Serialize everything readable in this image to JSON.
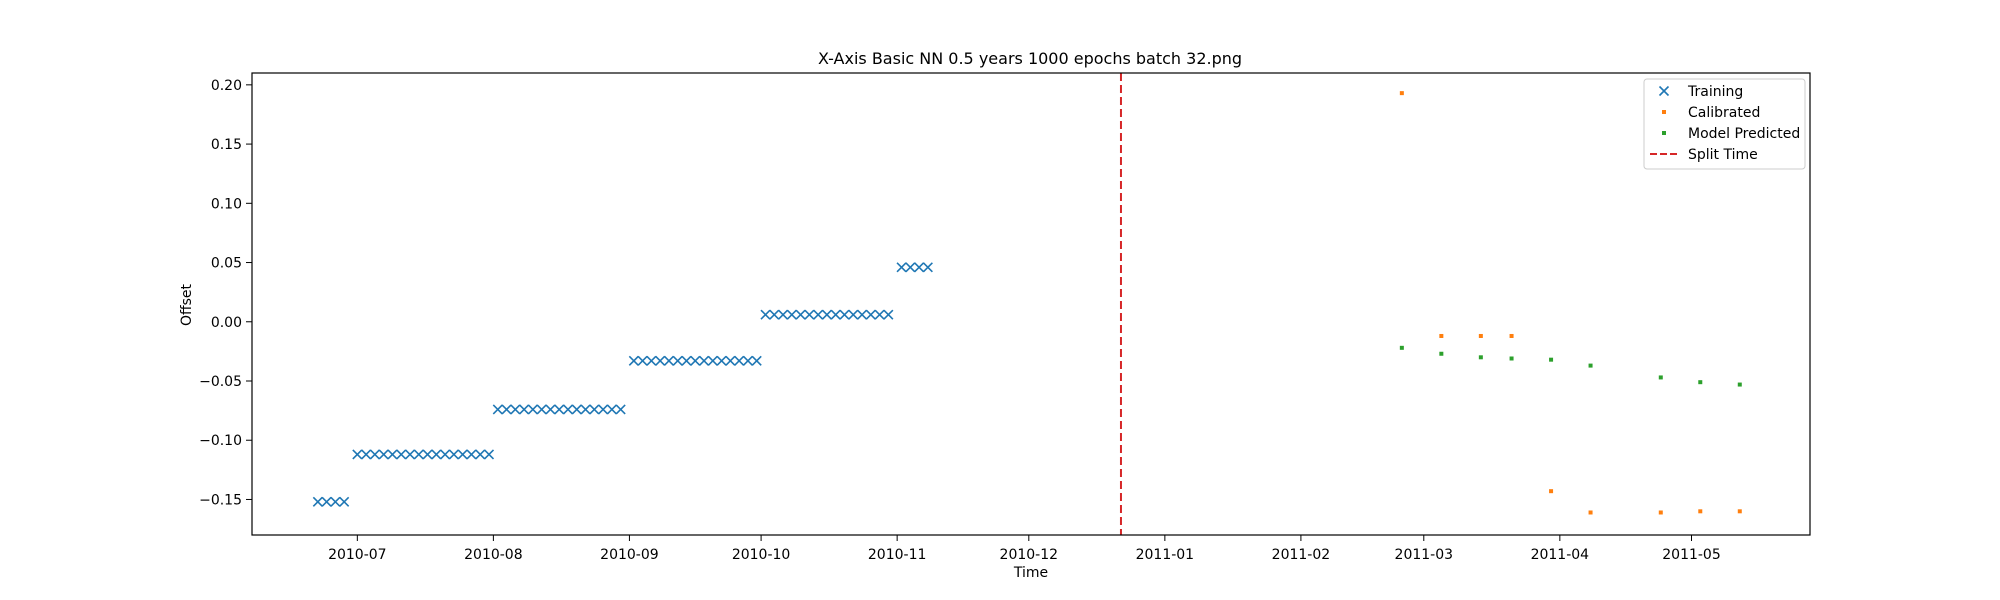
{
  "chart_data": {
    "type": "scatter",
    "title": "X-Axis Basic NN 0.5 years 1000 epochs batch 32.png",
    "xlabel": "Time",
    "ylabel": "Offset",
    "x_type": "date",
    "xlim": [
      "2010-06-07",
      "2011-05-28"
    ],
    "ylim": [
      -0.18,
      0.21
    ],
    "x_ticks": [
      {
        "value": "2010-07-01",
        "label": "2010-07"
      },
      {
        "value": "2010-08-01",
        "label": "2010-08"
      },
      {
        "value": "2010-09-01",
        "label": "2010-09"
      },
      {
        "value": "2010-10-01",
        "label": "2010-10"
      },
      {
        "value": "2010-11-01",
        "label": "2010-11"
      },
      {
        "value": "2010-12-01",
        "label": "2010-12"
      },
      {
        "value": "2011-01-01",
        "label": "2011-01"
      },
      {
        "value": "2011-02-01",
        "label": "2011-02"
      },
      {
        "value": "2011-03-01",
        "label": "2011-03"
      },
      {
        "value": "2011-04-01",
        "label": "2011-04"
      },
      {
        "value": "2011-05-01",
        "label": "2011-05"
      }
    ],
    "y_ticks": [
      {
        "value": 0.2,
        "label": "0.20"
      },
      {
        "value": 0.15,
        "label": "0.15"
      },
      {
        "value": 0.1,
        "label": "0.10"
      },
      {
        "value": 0.05,
        "label": "0.05"
      },
      {
        "value": 0.0,
        "label": "0.00"
      },
      {
        "value": -0.05,
        "label": "−0.05"
      },
      {
        "value": -0.1,
        "label": "−0.10"
      },
      {
        "value": -0.15,
        "label": "−0.15"
      }
    ],
    "grid": false,
    "legend_position": "top-right",
    "split_time": {
      "name": "Split Time",
      "x": "2010-12-22",
      "color": "#d62728"
    },
    "series": [
      {
        "name": "Training",
        "marker": "x",
        "color": "#1f77b4",
        "groups": [
          {
            "from": "2010-06-22",
            "to": "2010-06-28",
            "y": -0.152
          },
          {
            "from": "2010-07-01",
            "to": "2010-07-31",
            "y": -0.112
          },
          {
            "from": "2010-08-02",
            "to": "2010-08-31",
            "y": -0.074
          },
          {
            "from": "2010-09-02",
            "to": "2010-09-30",
            "y": -0.033
          },
          {
            "from": "2010-10-02",
            "to": "2010-10-31",
            "y": 0.006
          },
          {
            "from": "2010-11-02",
            "to": "2010-11-08",
            "y": 0.046
          }
        ],
        "step_days": 2
      },
      {
        "name": "Calibrated",
        "marker": "square",
        "color": "#ff7f0e",
        "points": [
          {
            "x": "2011-02-24",
            "y": 0.193
          },
          {
            "x": "2011-03-05",
            "y": -0.012
          },
          {
            "x": "2011-03-14",
            "y": -0.012
          },
          {
            "x": "2011-03-21",
            "y": -0.012
          },
          {
            "x": "2011-03-30",
            "y": -0.143
          },
          {
            "x": "2011-04-08",
            "y": -0.161
          },
          {
            "x": "2011-04-24",
            "y": -0.161
          },
          {
            "x": "2011-05-03",
            "y": -0.16
          },
          {
            "x": "2011-05-12",
            "y": -0.16
          }
        ]
      },
      {
        "name": "Model Predicted",
        "marker": "square",
        "color": "#2ca02c",
        "points": [
          {
            "x": "2011-02-24",
            "y": -0.022
          },
          {
            "x": "2011-03-05",
            "y": -0.027
          },
          {
            "x": "2011-03-14",
            "y": -0.03
          },
          {
            "x": "2011-03-21",
            "y": -0.031
          },
          {
            "x": "2011-03-30",
            "y": -0.032
          },
          {
            "x": "2011-04-08",
            "y": -0.037
          },
          {
            "x": "2011-04-24",
            "y": -0.047
          },
          {
            "x": "2011-05-03",
            "y": -0.051
          },
          {
            "x": "2011-05-12",
            "y": -0.053
          }
        ]
      }
    ]
  }
}
